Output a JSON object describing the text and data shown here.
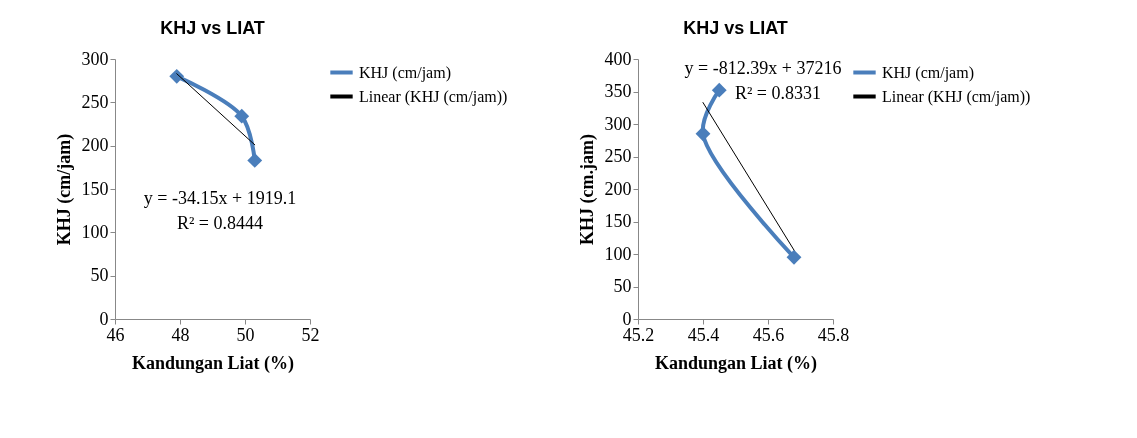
{
  "chart_data": [
    {
      "type": "line",
      "title": "KHJ vs LIAT",
      "xlabel": "Kandungan Liat (%)",
      "ylabel": "KHJ (cm/jam)",
      "xlim": [
        46,
        52
      ],
      "xticks": [
        46,
        48,
        50,
        52
      ],
      "ylim": [
        0,
        300
      ],
      "yticks": [
        0,
        50,
        100,
        150,
        200,
        250,
        300
      ],
      "grid": false,
      "legend": "right",
      "annotations": [
        "y = -34.15x + 1919.1",
        "R² = 0.8444"
      ],
      "series": [
        {
          "name": "KHJ (cm/jam)",
          "color": "#4a7ebb",
          "marker": "diamond",
          "x": [
            47.9,
            49.9,
            50.3
          ],
          "values": [
            280,
            234,
            183
          ]
        },
        {
          "name": "Linear (KHJ (cm/jam))",
          "color": "#000000",
          "marker": "none",
          "x": [
            47.9,
            50.3
          ],
          "values": [
            283,
            201
          ]
        }
      ]
    },
    {
      "type": "line",
      "title": "KHJ vs LIAT",
      "xlabel": "Kandungan Liat (%)",
      "ylabel": "KHJ (cm.jam)",
      "xlim": [
        45.2,
        45.8
      ],
      "xticks": [
        45.2,
        45.4,
        45.6,
        45.8
      ],
      "ylim": [
        0,
        400
      ],
      "yticks": [
        0,
        50,
        100,
        150,
        200,
        250,
        300,
        350,
        400
      ],
      "grid": false,
      "legend": "right",
      "annotations": [
        "y = -812.39x + 37216",
        "R² = 0.8331"
      ],
      "series": [
        {
          "name": "KHJ (cm/jam)",
          "color": "#4a7ebb",
          "marker": "diamond",
          "x": [
            45.45,
            45.4,
            45.68
          ],
          "values": [
            352,
            285,
            95
          ]
        },
        {
          "name": "Linear (KHJ (cm/jam))",
          "color": "#000000",
          "marker": "none",
          "x": [
            45.4,
            45.68
          ],
          "values": [
            333,
            106
          ]
        }
      ]
    }
  ]
}
